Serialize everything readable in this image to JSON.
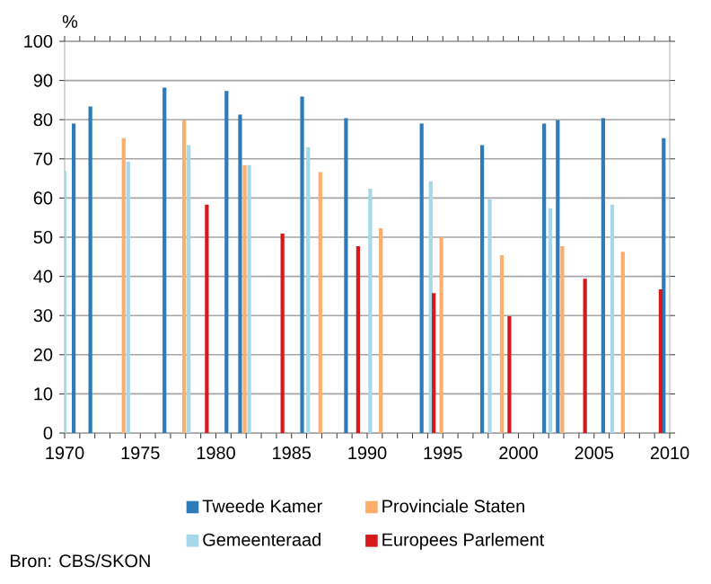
{
  "chart_data": {
    "type": "bar",
    "ylabel": "%",
    "xlim": [
      1970,
      2010
    ],
    "xticks": [
      1970,
      {
        "value": 1971,
        "label": null
      },
      {
        "value": 1972,
        "label": null
      },
      {
        "value": 1973,
        "label": null
      },
      {
        "value": 1974,
        "label": null
      },
      1975,
      {
        "value": 1976,
        "label": null
      },
      {
        "value": 1977,
        "label": null
      },
      {
        "value": 1978,
        "label": null
      },
      {
        "value": 1979,
        "label": null
      },
      1980,
      {
        "value": 1981,
        "label": null
      },
      {
        "value": 1982,
        "label": null
      },
      {
        "value": 1983,
        "label": null
      },
      {
        "value": 1984,
        "label": null
      },
      1985,
      {
        "value": 1986,
        "label": null
      },
      {
        "value": 1987,
        "label": null
      },
      {
        "value": 1988,
        "label": null
      },
      {
        "value": 1989,
        "label": null
      },
      1990,
      {
        "value": 1991,
        "label": null
      },
      {
        "value": 1992,
        "label": null
      },
      {
        "value": 1993,
        "label": null
      },
      {
        "value": 1994,
        "label": null
      },
      1995,
      {
        "value": 1996,
        "label": null
      },
      {
        "value": 1997,
        "label": null
      },
      {
        "value": 1998,
        "label": null
      },
      {
        "value": 1999,
        "label": null
      },
      2000,
      {
        "value": 2001,
        "label": null
      },
      {
        "value": 2002,
        "label": null
      },
      {
        "value": 2003,
        "label": null
      },
      {
        "value": 2004,
        "label": null
      },
      2005,
      {
        "value": 2006,
        "label": null
      },
      {
        "value": 2007,
        "label": null
      },
      {
        "value": 2008,
        "label": null
      },
      {
        "value": 2009,
        "label": null
      },
      2010
    ],
    "ylim": [
      0,
      100
    ],
    "yticks": [
      0,
      10,
      20,
      30,
      40,
      50,
      60,
      70,
      80,
      90,
      100
    ],
    "grid": "y",
    "legend": "bottom",
    "series": [
      {
        "name": "Tweede Kamer",
        "color": "#2e7bb9",
        "x": [
          1970.6,
          1971.7,
          1976.6,
          1980.7,
          1981.6,
          1985.7,
          1988.6,
          1993.6,
          1997.6,
          2001.7,
          2002.6,
          2005.6,
          2009.6
        ],
        "values": [
          79.0,
          83.4,
          88.2,
          87.3,
          81.3,
          85.9,
          80.4,
          79.0,
          73.5,
          79.0,
          79.9,
          80.4,
          75.3
        ]
      },
      {
        "name": "Provinciale Staten",
        "color": "#fdae6b",
        "x": [
          1973.9,
          1977.9,
          1981.9,
          1986.9,
          1990.9,
          1994.9,
          1998.9,
          2002.9,
          2006.9
        ],
        "values": [
          75.3,
          79.8,
          68.4,
          66.6,
          52.3,
          50.0,
          45.4,
          47.7,
          46.3
        ]
      },
      {
        "name": "Gemeenteraad",
        "color": "#a6d8ea",
        "x": [
          1970.0,
          1974.2,
          1978.2,
          1982.2,
          1986.1,
          1990.2,
          1994.2,
          1998.1,
          2002.1,
          2006.2
        ],
        "values": [
          67.0,
          69.3,
          73.5,
          68.4,
          73.0,
          62.4,
          64.3,
          59.7,
          57.4,
          58.3
        ]
      },
      {
        "name": "Europees Parlement",
        "color": "#d7191c",
        "x": [
          1979.4,
          1984.4,
          1989.4,
          1994.4,
          1999.4,
          2004.4,
          2009.4
        ],
        "values": [
          58.3,
          50.9,
          47.7,
          35.7,
          29.8,
          39.4,
          36.7
        ]
      }
    ],
    "annotations": [
      "Bron: CBS/SKON"
    ]
  }
}
